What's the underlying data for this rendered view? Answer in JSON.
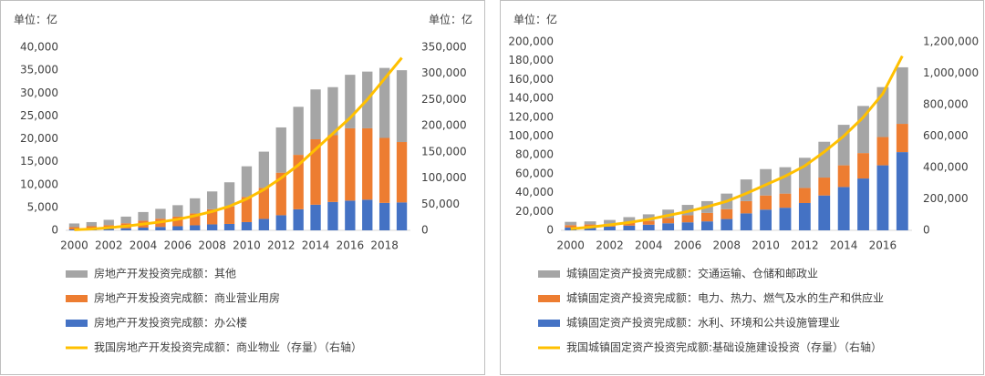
{
  "chart_data": [
    {
      "type": "bar",
      "stacked": true,
      "ylabel": "单位：亿",
      "y2label": "单位：亿",
      "categories": [
        "2000",
        null,
        "2002",
        null,
        "2004",
        null,
        "2006",
        null,
        "2008",
        null,
        "2010",
        null,
        "2012",
        null,
        "2014",
        null,
        "2016",
        null,
        "2018",
        null
      ],
      "series": [
        {
          "name": "房地产开发投资完成额：其他",
          "color": "#a5a5a5",
          "values": [
            800,
            900,
            1150,
            1450,
            1900,
            2150,
            2500,
            3300,
            3900,
            5300,
            6700,
            7900,
            9900,
            10500,
            10900,
            10500,
            11700,
            12400,
            15300,
            15700
          ]
        },
        {
          "name": "房地产开发投资完成额：商业营业用房",
          "color": "#ed7d31",
          "values": [
            500,
            600,
            800,
            1100,
            1500,
            1800,
            2100,
            2600,
            3300,
            3800,
            5500,
            6800,
            9300,
            11900,
            14300,
            14600,
            15800,
            15600,
            14200,
            13200
          ]
        },
        {
          "name": "房地产开发投资完成额：办公楼",
          "color": "#4472c4",
          "values": [
            200,
            300,
            350,
            450,
            600,
            750,
            900,
            1100,
            1300,
            1400,
            1800,
            2500,
            3300,
            4600,
            5600,
            6200,
            6500,
            6700,
            6000,
            6100
          ]
        },
        {
          "name": "我国房地产开发投资完成额：商业物业（存量）（右轴）",
          "color": "#ffc000",
          "type": "line",
          "axis": "y2",
          "values": [
            1000,
            2500,
            5000,
            8000,
            12000,
            16000,
            21000,
            28000,
            36000,
            46000,
            60000,
            78000,
            100000,
            125000,
            155000,
            185000,
            215000,
            250000,
            290000,
            330000
          ]
        }
      ],
      "ylim": [
        0,
        40000
      ],
      "yticks": [
        0,
        {
          "value": 5000,
          "label": "5,000"
        },
        {
          "value": 10000,
          "label": "10,000"
        },
        {
          "value": 15000,
          "label": "15,000"
        },
        {
          "value": 20000,
          "label": "20,000"
        },
        {
          "value": 25000,
          "label": "25,000"
        },
        {
          "value": 30000,
          "label": "30,000"
        },
        {
          "value": 35000,
          "label": "35,000"
        },
        {
          "value": 40000,
          "label": "40,000"
        }
      ],
      "y2lim": [
        0,
        350000
      ],
      "y2ticks": [
        0,
        {
          "value": 50000,
          "label": "50,000"
        },
        {
          "value": 100000,
          "label": "100,000"
        },
        {
          "value": 150000,
          "label": "150,000"
        },
        {
          "value": 200000,
          "label": "200,000"
        },
        {
          "value": 250000,
          "label": "250,000"
        },
        {
          "value": 300000,
          "label": "300,000"
        },
        {
          "value": 350000,
          "label": "350,000"
        }
      ]
    },
    {
      "type": "bar",
      "stacked": true,
      "ylabel": "单位：亿",
      "categories": [
        "2000",
        null,
        "2002",
        null,
        "2004",
        null,
        "2006",
        null,
        "2008",
        null,
        "2010",
        null,
        "2012",
        null,
        "2014",
        null,
        "2016",
        null
      ],
      "series": [
        {
          "name": "城镇固定资产投资完成额：交通运输、仓储和邮政业",
          "color": "#a5a5a5",
          "values": [
            3500,
            3300,
            4000,
            5500,
            7000,
            9000,
            11000,
            12500,
            16500,
            23000,
            28000,
            28000,
            32000,
            38000,
            43000,
            50000,
            53000,
            60000
          ]
        },
        {
          "name": "城镇固定资产投资完成额：电力、热力、燃气及水的生产和供应业",
          "color": "#ed7d31",
          "values": [
            2500,
            2700,
            3000,
            3500,
            4000,
            5500,
            7500,
            9000,
            10500,
            13000,
            15000,
            15000,
            16000,
            19000,
            23000,
            27000,
            30000,
            30000
          ]
        },
        {
          "name": "城镇固定资产投资完成额：水利、环境和公共设施管理业",
          "color": "#4472c4",
          "values": [
            3000,
            3500,
            4000,
            5000,
            6000,
            7500,
            8500,
            9500,
            12000,
            18000,
            22000,
            24000,
            29000,
            37000,
            46000,
            55000,
            69000,
            83000
          ]
        },
        {
          "name": "我国城镇固定资产投资完成额:基础设施建设投资（存量）（右轴）",
          "color": "#ffc000",
          "type": "line",
          "axis": "y2",
          "values": [
            10000,
            20000,
            35000,
            50000,
            70000,
            95000,
            120000,
            150000,
            185000,
            235000,
            290000,
            345000,
            410000,
            500000,
            600000,
            720000,
            870000,
            1110000
          ]
        }
      ],
      "ylim": [
        0,
        200000
      ],
      "yticks": [
        0,
        {
          "value": 20000,
          "label": "20,000"
        },
        {
          "value": 40000,
          "label": "40,000"
        },
        {
          "value": 60000,
          "label": "60,000"
        },
        {
          "value": 80000,
          "label": "80,000"
        },
        {
          "value": 100000,
          "label": "100,000"
        },
        {
          "value": 120000,
          "label": "120,000"
        },
        {
          "value": 140000,
          "label": "140,000"
        },
        {
          "value": 160000,
          "label": "160,000"
        },
        {
          "value": 180000,
          "label": "180,000"
        },
        {
          "value": 200000,
          "label": "200,000"
        }
      ],
      "y2lim": [
        0,
        1200000
      ],
      "y2ticks": [
        0,
        {
          "value": 200000,
          "label": "200,000"
        },
        {
          "value": 400000,
          "label": "400,000"
        },
        {
          "value": 600000,
          "label": "600,000"
        },
        {
          "value": 800000,
          "label": "800,000"
        },
        {
          "value": 1000000,
          "label": "1,000,000"
        },
        {
          "value": 1200000,
          "label": "1,200,000"
        }
      ]
    }
  ]
}
